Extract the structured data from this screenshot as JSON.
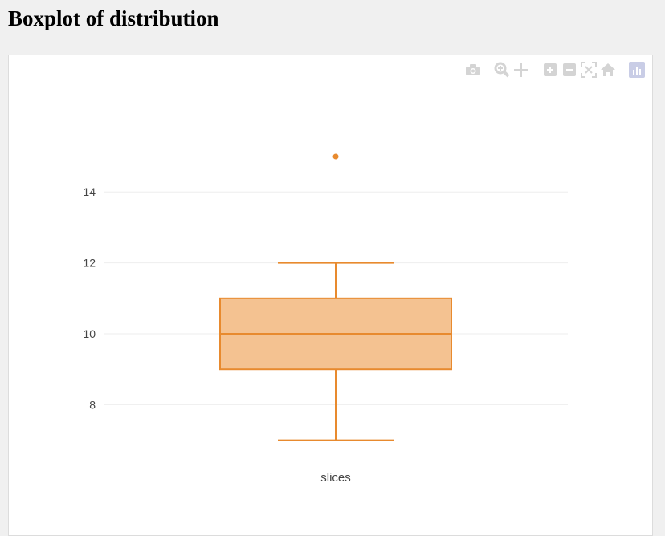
{
  "page": {
    "title": "Boxplot of distribution"
  },
  "toolbar": {
    "buttons": [
      {
        "icon": "camera-icon",
        "label": "Download plot as a png"
      },
      {
        "icon": "zoom-icon",
        "label": "Zoom"
      },
      {
        "icon": "pan-icon",
        "label": "Pan"
      },
      {
        "icon": "zoom-in-icon",
        "label": "Zoom in"
      },
      {
        "icon": "zoom-out-icon",
        "label": "Zoom out"
      },
      {
        "icon": "autoscale-icon",
        "label": "Autoscale"
      },
      {
        "icon": "home-icon",
        "label": "Reset axes"
      },
      {
        "icon": "plotly-logo-icon",
        "label": "Produced with Plotly"
      }
    ],
    "icon_color": "#d4d4d4"
  },
  "chart_data": {
    "type": "box",
    "title": "",
    "xlabel": "",
    "ylabel": "",
    "categories": [
      "slices"
    ],
    "boxes": [
      {
        "name": "slices",
        "min": 7,
        "q1": 9,
        "median": 10,
        "q3": 11,
        "max": 12,
        "outliers": [
          15
        ]
      }
    ],
    "ylim": [
      6.2,
      16.9
    ],
    "yticks": [
      8,
      10,
      12,
      14
    ],
    "grid": true,
    "colors": {
      "line": "#e88a2e",
      "fill": "#f4c291",
      "grid": "#eeeeee"
    }
  }
}
